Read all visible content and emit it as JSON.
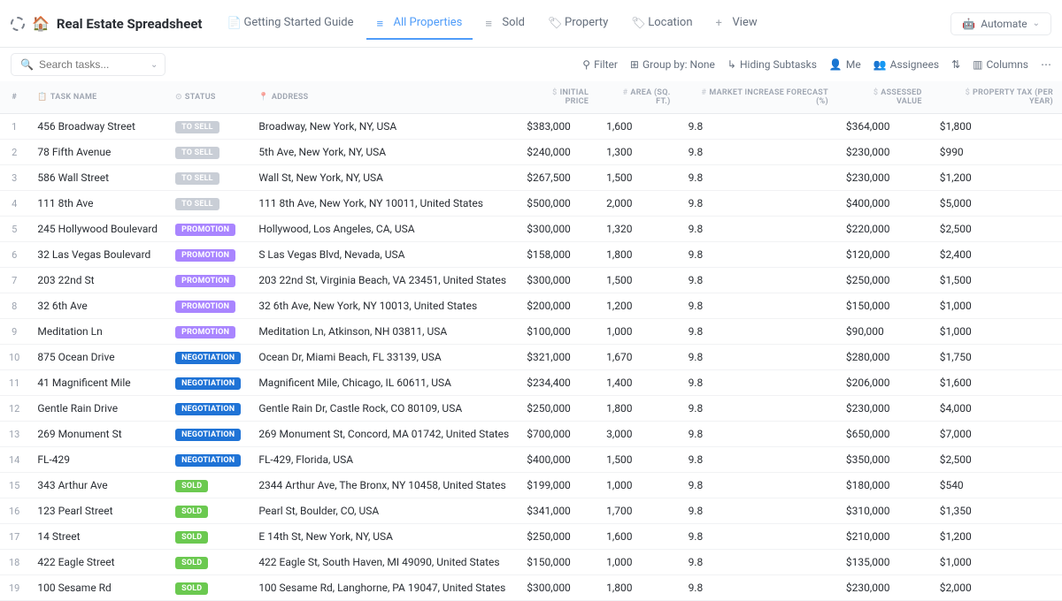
{
  "header": {
    "title": "Real Estate Spreadsheet",
    "automate": "Automate"
  },
  "tabs": [
    {
      "label": "Getting Started Guide",
      "icon": "doc"
    },
    {
      "label": "All Properties",
      "icon": "list",
      "active": true
    },
    {
      "label": "Sold",
      "icon": "list"
    },
    {
      "label": "Property",
      "icon": "tag"
    },
    {
      "label": "Location",
      "icon": "tag"
    },
    {
      "label": "View",
      "icon": "plus"
    }
  ],
  "search": {
    "placeholder": "Search tasks..."
  },
  "toolbar": {
    "filter": "Filter",
    "group": "Group by: None",
    "subtasks": "Hiding Subtasks",
    "me": "Me",
    "assignees": "Assignees",
    "columns": "Columns"
  },
  "columns": [
    "#",
    "TASK NAME",
    "STATUS",
    "ADDRESS",
    "INITIAL PRICE",
    "AREA (SQ. FT.)",
    "MARKET INCREASE FORECAST (%)",
    "ASSESSED VALUE",
    "PROPERTY TAX (PER YEAR)"
  ],
  "status_colors": {
    "TO SELL": "#c9ced6",
    "PROMOTION": "#a985ff",
    "NEGOTIATION": "#1f73d6",
    "SOLD": "#6bc950"
  },
  "rows": [
    {
      "n": "1",
      "name": "456 Broadway Street",
      "status": "TO SELL",
      "address": "Broadway, New York, NY, USA",
      "price": "$383,000",
      "area": "1,600",
      "forecast": "9.8",
      "assessed": "$364,000",
      "tax": "$1,800"
    },
    {
      "n": "2",
      "name": "78 Fifth Avenue",
      "status": "TO SELL",
      "address": "5th Ave, New York, NY, USA",
      "price": "$240,000",
      "area": "1,300",
      "forecast": "9.8",
      "assessed": "$230,000",
      "tax": "$990"
    },
    {
      "n": "3",
      "name": "586 Wall Street",
      "status": "TO SELL",
      "address": "Wall St, New York, NY, USA",
      "price": "$267,500",
      "area": "1,500",
      "forecast": "9.8",
      "assessed": "$230,000",
      "tax": "$1,200"
    },
    {
      "n": "4",
      "name": "111 8th Ave",
      "status": "TO SELL",
      "address": "111 8th Ave, New York, NY 10011, United States",
      "price": "$500,000",
      "area": "2,000",
      "forecast": "9.8",
      "assessed": "$400,000",
      "tax": "$5,000"
    },
    {
      "n": "5",
      "name": "245 Hollywood Boulevard",
      "status": "PROMOTION",
      "address": "Hollywood, Los Angeles, CA, USA",
      "price": "$300,000",
      "area": "1,320",
      "forecast": "9.8",
      "assessed": "$220,000",
      "tax": "$2,500"
    },
    {
      "n": "6",
      "name": "32 Las Vegas Boulevard",
      "status": "PROMOTION",
      "address": "S Las Vegas Blvd, Nevada, USA",
      "price": "$158,000",
      "area": "1,800",
      "forecast": "9.8",
      "assessed": "$120,000",
      "tax": "$2,400"
    },
    {
      "n": "7",
      "name": "203 22nd St",
      "status": "PROMOTION",
      "address": "203 22nd St, Virginia Beach, VA 23451, United States",
      "price": "$300,000",
      "area": "1,500",
      "forecast": "9.8",
      "assessed": "$250,000",
      "tax": "$1,500"
    },
    {
      "n": "8",
      "name": "32 6th Ave",
      "status": "PROMOTION",
      "address": "32 6th Ave, New York, NY 10013, United States",
      "price": "$200,000",
      "area": "1,200",
      "forecast": "9.8",
      "assessed": "$150,000",
      "tax": "$1,000"
    },
    {
      "n": "9",
      "name": "Meditation Ln",
      "status": "PROMOTION",
      "address": "Meditation Ln, Atkinson, NH 03811, USA",
      "price": "$100,000",
      "area": "1,000",
      "forecast": "9.8",
      "assessed": "$90,000",
      "tax": "$1,000"
    },
    {
      "n": "10",
      "name": "875 Ocean Drive",
      "status": "NEGOTIATION",
      "address": "Ocean Dr, Miami Beach, FL 33139, USA",
      "price": "$321,000",
      "area": "1,670",
      "forecast": "9.8",
      "assessed": "$280,000",
      "tax": "$1,750"
    },
    {
      "n": "11",
      "name": "41 Magnificent Mile",
      "status": "NEGOTIATION",
      "address": "Magnificent Mile, Chicago, IL 60611, USA",
      "price": "$234,400",
      "area": "1,400",
      "forecast": "9.8",
      "assessed": "$206,000",
      "tax": "$1,600"
    },
    {
      "n": "12",
      "name": "Gentle Rain Drive",
      "status": "NEGOTIATION",
      "address": "Gentle Rain Dr, Castle Rock, CO 80109, USA",
      "price": "$250,000",
      "area": "1,800",
      "forecast": "9.8",
      "assessed": "$230,000",
      "tax": "$4,000"
    },
    {
      "n": "13",
      "name": "269 Monument St",
      "status": "NEGOTIATION",
      "address": "269 Monument St, Concord, MA 01742, United States",
      "price": "$700,000",
      "area": "3,000",
      "forecast": "9.8",
      "assessed": "$650,000",
      "tax": "$7,000"
    },
    {
      "n": "14",
      "name": "FL-429",
      "status": "NEGOTIATION",
      "address": "FL-429, Florida, USA",
      "price": "$400,000",
      "area": "1,500",
      "forecast": "9.8",
      "assessed": "$350,000",
      "tax": "$2,500"
    },
    {
      "n": "15",
      "name": "343 Arthur Ave",
      "status": "SOLD",
      "address": "2344 Arthur Ave, The Bronx, NY 10458, United States",
      "price": "$199,000",
      "area": "1,000",
      "forecast": "9.8",
      "assessed": "$180,000",
      "tax": "$540"
    },
    {
      "n": "16",
      "name": "123 Pearl Street",
      "status": "SOLD",
      "address": "Pearl St, Boulder, CO, USA",
      "price": "$341,000",
      "area": "1,700",
      "forecast": "9.8",
      "assessed": "$310,000",
      "tax": "$1,350"
    },
    {
      "n": "17",
      "name": "14 Street",
      "status": "SOLD",
      "address": "E 14th St, New York, NY, USA",
      "price": "$250,000",
      "area": "1,600",
      "forecast": "9.8",
      "assessed": "$210,000",
      "tax": "$1,200"
    },
    {
      "n": "18",
      "name": "422 Eagle Street",
      "status": "SOLD",
      "address": "422 Eagle St, South Haven, MI 49090, United States",
      "price": "$150,000",
      "area": "1,000",
      "forecast": "9.8",
      "assessed": "$135,000",
      "tax": "$1,000"
    },
    {
      "n": "19",
      "name": "100 Sesame Rd",
      "status": "SOLD",
      "address": "100 Sesame Rd, Langhorne, PA 19047, United States",
      "price": "$300,000",
      "area": "1,800",
      "forecast": "9.8",
      "assessed": "$230,000",
      "tax": "$2,000"
    }
  ]
}
